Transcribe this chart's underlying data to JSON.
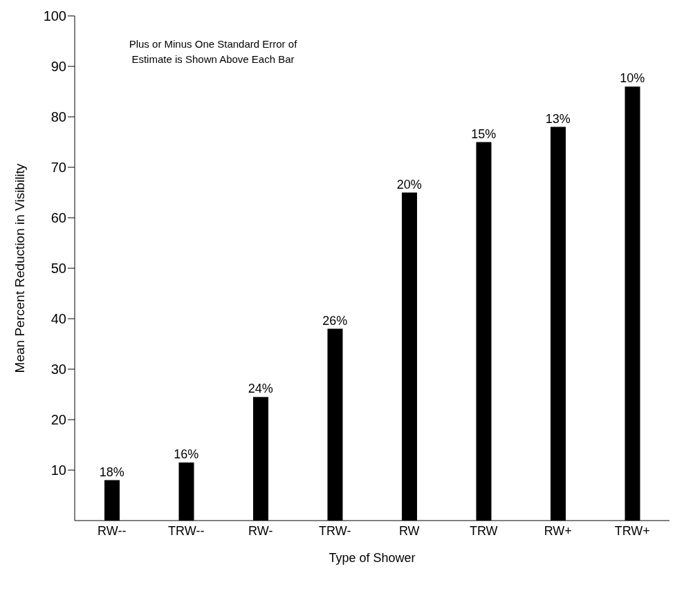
{
  "chart_data": {
    "type": "bar",
    "xlabel": "Type of Shower",
    "ylabel": "Mean Percent Reduction in Visibility",
    "annotations": [
      "Plus or Minus One Standard Error of Estimate is Shown Above Each Bar",
      {
        "text": "18%",
        "x": "RW--",
        "y": 8
      },
      {
        "text": "16%",
        "x": "TRW--",
        "y": 11.5
      },
      {
        "text": "24%",
        "x": "RW-",
        "y": 24.5
      },
      {
        "text": "26%",
        "x": "TRW-",
        "y": 38
      },
      {
        "text": "20%",
        "x": "RW",
        "y": 65
      },
      {
        "text": "15%",
        "x": "TRW",
        "y": 75
      },
      {
        "text": "13%",
        "x": "RW+",
        "y": 78
      },
      {
        "text": "10%",
        "x": "TRW+",
        "y": 86
      }
    ],
    "categories": [
      "RW--",
      "TRW--",
      "RW-",
      "TRW-",
      "RW",
      "TRW",
      "RW+",
      "TRW+"
    ],
    "values": [
      8,
      11.5,
      24.5,
      38,
      65,
      75,
      78,
      86
    ],
    "color": "#000000",
    "ylim": [
      0,
      100
    ],
    "yticks": [
      10,
      20,
      30,
      40,
      50,
      60,
      70,
      80,
      90,
      100
    ],
    "grid": false
  }
}
